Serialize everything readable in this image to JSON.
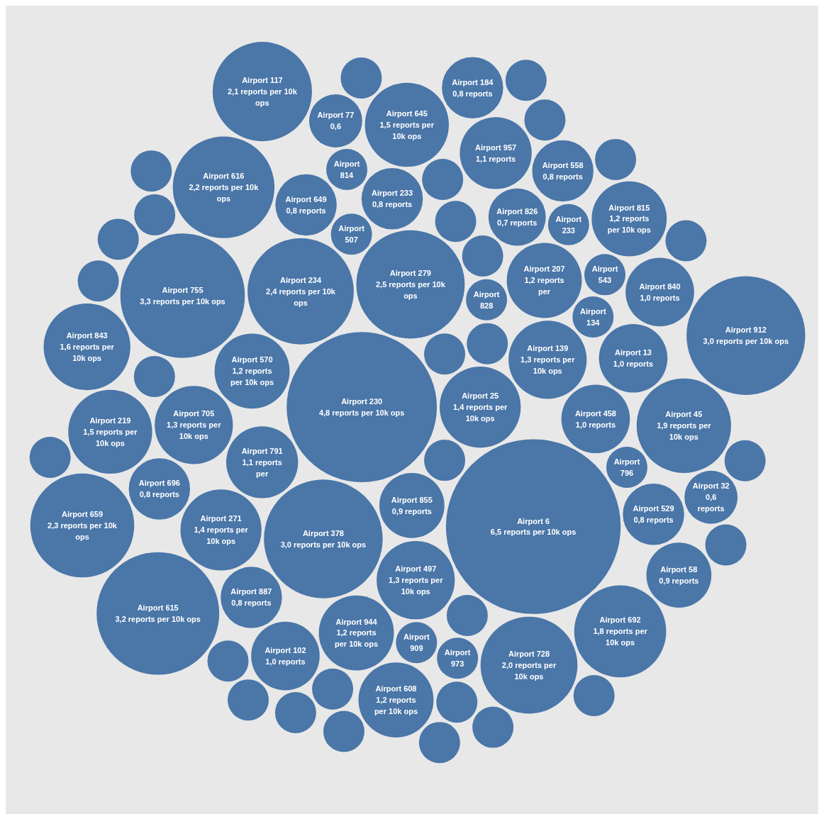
{
  "chart_data": {
    "type": "other",
    "color": "#4a76a8",
    "categories": [
      "Airport 230",
      "Airport 25",
      null,
      null,
      "Airport 279",
      "Airport 855",
      null,
      "Airport 6",
      "Airport 378",
      "Airport 234",
      "Airport 497",
      "Airport 828",
      "Airport 139",
      "Airport 791",
      "Airport 458",
      "Airport 570",
      "Airport 705",
      "Airport 207",
      null,
      "Airport 507",
      "Airport 271",
      "Airport 755",
      "Airport 826",
      null,
      "Airport 944",
      "Airport 233",
      null,
      "Airport 134",
      "Airport 13",
      "Airport 649",
      null,
      "Airport 696",
      "Airport 796",
      null,
      "Airport 957",
      "Airport 887",
      "Airport 814",
      "Airport 616",
      "Airport 102",
      "Airport 543",
      "Airport 909",
      "Airport 973",
      "Airport 233",
      "Airport 728",
      "Airport 45",
      "Airport 529",
      "Airport 840",
      "Airport 645",
      "Airport 815",
      "Airport 77",
      "Airport 615",
      "Airport 608",
      "Airport 558",
      "Airport 117",
      "Airport 219",
      "Airport 843",
      "Airport 659",
      "Airport 692",
      "Airport 58",
      "Airport 184",
      "Airport 32",
      null,
      "Airport 912",
      null,
      null,
      null,
      null,
      null,
      null,
      null,
      null,
      null,
      null,
      null,
      null,
      null,
      null,
      null,
      null,
      null,
      null,
      null,
      null
    ],
    "values": [
      4.8,
      1.4,
      null,
      null,
      2.5,
      0.9,
      null,
      6.5,
      3.0,
      2.4,
      1.3,
      null,
      1.3,
      1.1,
      1.0,
      1.2,
      1.3,
      1.2,
      null,
      null,
      1.4,
      3.3,
      0.7,
      null,
      1.2,
      0.8,
      null,
      null,
      1.0,
      0.8,
      null,
      0.8,
      null,
      null,
      1.1,
      0.8,
      null,
      2.2,
      1.0,
      null,
      null,
      null,
      null,
      2.0,
      1.9,
      0.8,
      1.0,
      1.5,
      1.2,
      0.6,
      3.2,
      1.2,
      0.8,
      2.1,
      1.5,
      1.6,
      2.3,
      1.8,
      0.9,
      0.8,
      0.6,
      null,
      3.0,
      null,
      null,
      null,
      null,
      null,
      null,
      null,
      null,
      null,
      null,
      null,
      null,
      null,
      null,
      null,
      null,
      null,
      null,
      null,
      null
    ],
    "value_labels": [
      "4,8 reports per 10k ops",
      "1,4 reports per 10k ops",
      null,
      null,
      "2,5 reports per 10k ops",
      "0,9 reports",
      null,
      "6,5 reports per 10k ops",
      "3,0 reports per 10k ops",
      "2,4 reports per 10k ops",
      "1,3 reports per 10k ops",
      null,
      "1,3 reports per 10k ops",
      "1,1 reports per",
      "1,0 reports",
      "1,2 reports per 10k ops",
      "1,3 reports per 10k ops",
      "1,2 reports per",
      null,
      null,
      "1,4 reports per 10k ops",
      "3,3 reports per 10k ops",
      "0,7 reports",
      null,
      "1,2 reports per 10k ops",
      "0,8 reports",
      null,
      null,
      "1,0 reports",
      "0,8 reports",
      null,
      "0,8 reports",
      null,
      null,
      "1,1 reports",
      "0,8 reports",
      null,
      "2,2 reports per 10k ops",
      "1,0 reports",
      null,
      null,
      null,
      null,
      "2,0 reports per 10k ops",
      "1,9 reports per 10k ops",
      "0,8 reports",
      "1,0 reports",
      "1,5 reports per 10k ops",
      "1,2 reports per 10k ops",
      "0,6",
      "3,2 reports per 10k ops",
      "1,2 reports per 10k ops",
      "0,8 reports",
      "2,1 reports per 10k ops",
      "1,5 reports per 10k ops",
      "1,6 reports per 10k ops",
      "2,3 reports per 10k ops",
      "1,8 reports per 10k ops",
      "0,9 reports",
      "0,8 reports",
      "0,6 reports",
      null,
      "3,0 reports per 10k ops",
      null,
      null,
      null,
      null,
      null,
      null,
      null,
      null,
      null,
      null,
      null,
      null,
      null,
      null,
      null,
      null,
      null,
      null,
      null,
      null
    ]
  }
}
